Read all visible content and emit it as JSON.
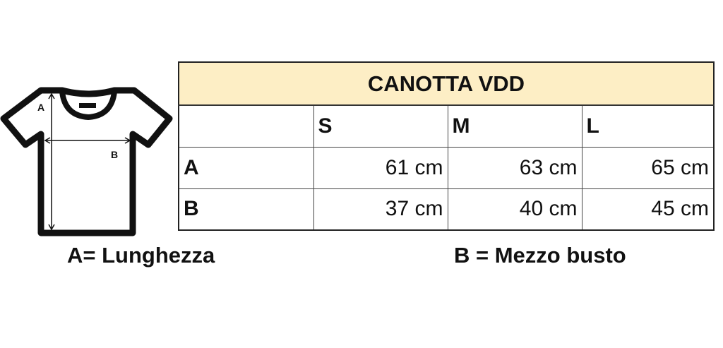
{
  "title": "CANOTTA VDD",
  "illustration": {
    "icon": "tshirt-icon",
    "labels": [
      "A",
      "B"
    ]
  },
  "columns": [
    "",
    "S",
    "M",
    "L"
  ],
  "rows": [
    {
      "label": "A",
      "values": [
        "61 cm",
        "63 cm",
        "65 cm"
      ]
    },
    {
      "label": "B",
      "values": [
        "37 cm",
        "40 cm",
        "45 cm"
      ]
    }
  ],
  "legend": {
    "a": "A= Lunghezza",
    "b": "B = Mezzo busto"
  },
  "colors": {
    "header_bg": "#fdeec5",
    "ink": "#111111"
  }
}
